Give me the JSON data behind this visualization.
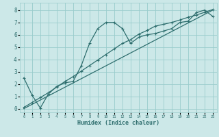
{
  "xlabel": "Humidex (Indice chaleur)",
  "bg_color": "#cce8e8",
  "grid_color": "#99cccc",
  "line_color": "#2e6e6e",
  "xlim": [
    -0.5,
    23.5
  ],
  "ylim": [
    -0.3,
    8.6
  ],
  "xticks": [
    0,
    1,
    2,
    3,
    4,
    5,
    6,
    7,
    8,
    9,
    10,
    11,
    12,
    13,
    14,
    15,
    16,
    17,
    18,
    19,
    20,
    21,
    22,
    23
  ],
  "yticks": [
    0,
    1,
    2,
    3,
    4,
    5,
    6,
    7,
    8
  ],
  "line1_x": [
    0,
    1,
    2,
    3,
    4,
    5,
    6,
    7,
    8,
    9,
    10,
    11,
    12,
    13,
    14,
    15,
    16,
    17,
    18,
    19,
    20,
    21,
    22,
    23
  ],
  "line1_y": [
    2.5,
    1.1,
    0.05,
    1.2,
    1.8,
    2.1,
    2.2,
    3.5,
    5.3,
    6.5,
    7.0,
    7.0,
    6.5,
    5.3,
    5.8,
    6.0,
    6.1,
    6.3,
    6.5,
    7.0,
    7.1,
    7.8,
    8.0,
    7.5
  ],
  "line2_x": [
    0,
    23
  ],
  "line2_y": [
    0.0,
    8.0
  ],
  "line3_x": [
    0,
    1,
    2,
    3,
    4,
    5,
    6,
    7,
    8,
    9,
    10,
    11,
    12,
    13,
    14,
    15,
    16,
    17,
    18,
    19,
    20,
    21,
    22,
    23
  ],
  "line3_y": [
    0.1,
    0.5,
    0.9,
    1.3,
    1.75,
    2.2,
    2.6,
    3.05,
    3.5,
    3.95,
    4.4,
    4.85,
    5.3,
    5.6,
    6.05,
    6.35,
    6.7,
    6.85,
    7.0,
    7.2,
    7.42,
    7.6,
    7.82,
    8.05
  ]
}
